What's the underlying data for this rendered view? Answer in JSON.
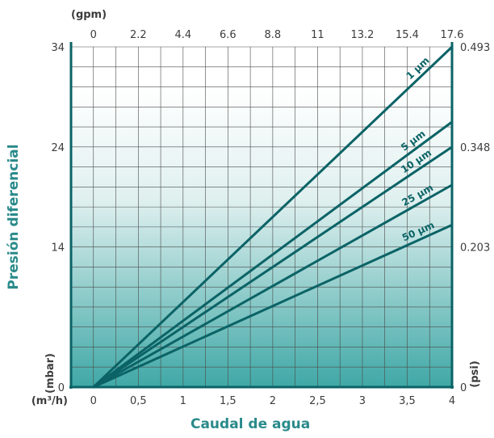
{
  "chart_data": {
    "type": "line",
    "xlabel": "Caudal de agua",
    "x_unit": "(m³/h)",
    "ylabel": "Presión diferencial",
    "y_unit": "(mbar)",
    "top_axis_unit": "(gpm)",
    "right_axis_unit": "(psi)",
    "xlim": [
      -0.25,
      4
    ],
    "ylim": [
      0,
      34
    ],
    "x_ticks": [
      "0",
      "0,5",
      "1",
      "1,5",
      "2",
      "2,5",
      "3",
      "3,5",
      "4"
    ],
    "x_tick_values": [
      0,
      0.5,
      1,
      1.5,
      2,
      2.5,
      3,
      3.5,
      4
    ],
    "y_ticks": [
      "0",
      "14",
      "24",
      "34"
    ],
    "y_tick_values": [
      0,
      14,
      24,
      34
    ],
    "top_ticks": [
      "0",
      "2.2",
      "4.4",
      "6.6",
      "8.8",
      "11",
      "13.2",
      "15.4",
      "17.6"
    ],
    "right_ticks": [
      "0",
      "0.203",
      "0.348",
      "0.493"
    ],
    "right_tick_values": [
      0,
      14,
      24,
      34
    ],
    "grid": true,
    "series": [
      {
        "name": "1 µm",
        "x": [
          0,
          4
        ],
        "y": [
          0,
          34
        ]
      },
      {
        "name": "5 µm",
        "x": [
          0,
          4
        ],
        "y": [
          0,
          26.5
        ]
      },
      {
        "name": "10 µm",
        "x": [
          0,
          4
        ],
        "y": [
          0,
          24
        ]
      },
      {
        "name": "25 µm",
        "x": [
          0,
          4
        ],
        "y": [
          0,
          20.2
        ]
      },
      {
        "name": "50 µm",
        "x": [
          0,
          4
        ],
        "y": [
          0,
          16.2
        ]
      }
    ],
    "colors": {
      "line": "#0b6366",
      "axis_text": "#2a8a8a",
      "grid": "#4a4a4a",
      "band": "#3fa8a6"
    }
  }
}
